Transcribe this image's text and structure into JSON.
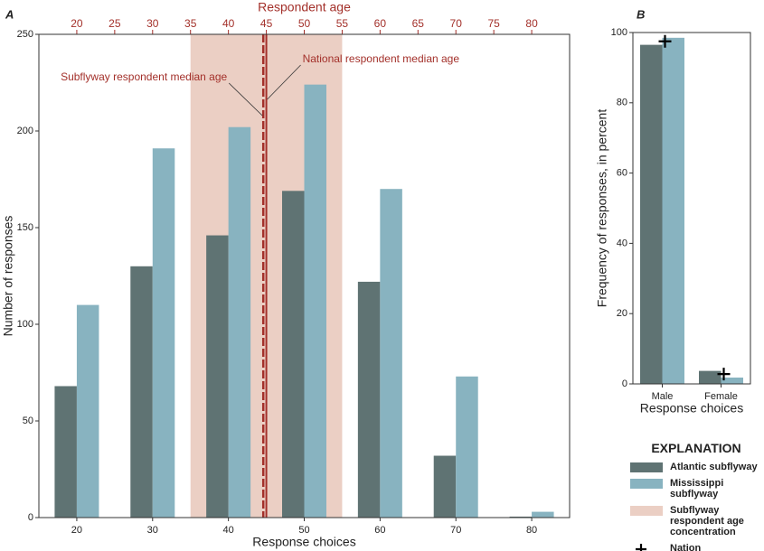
{
  "legend_title": "EXPLANATION",
  "chart_data": [
    {
      "type": "bar",
      "panel": "A",
      "xlabel": "Response choices",
      "ylabel": "Number of responses",
      "categories": [
        "20",
        "30",
        "40",
        "50",
        "60",
        "70",
        "80"
      ],
      "series": [
        {
          "name": "Atlantic subflyway",
          "color": "#5f7373",
          "values": [
            68,
            130,
            146,
            169,
            122,
            32,
            0.5
          ]
        },
        {
          "name": "Mississippi subflyway",
          "color": "#88b3c0",
          "values": [
            110,
            191,
            202,
            224,
            170,
            73,
            3
          ]
        }
      ],
      "ylim": [
        0,
        250
      ],
      "yticks": [
        0,
        50,
        100,
        150,
        200,
        250
      ],
      "x2label": "Respondent age",
      "x2lim": [
        15,
        85
      ],
      "x2ticks": [
        20,
        25,
        30,
        35,
        40,
        45,
        50,
        55,
        60,
        65,
        70,
        75,
        80
      ],
      "x2color": "#a3302a",
      "shaded_region": {
        "name": "Subflyway respondent age concentration",
        "range": [
          35,
          55
        ],
        "color": "#ebcfc4"
      },
      "annotations": [
        {
          "text": "Subflyway respondent median age",
          "x": 44.6,
          "style": "dashed"
        },
        {
          "text": "National respondent median age",
          "x": 45,
          "style": "solid"
        }
      ]
    },
    {
      "type": "bar",
      "panel": "B",
      "xlabel": "Response choices",
      "ylabel": "Frequency of responses, in percent",
      "categories": [
        "Male",
        "Female"
      ],
      "series": [
        {
          "color": "#5f7373",
          "values": [
            96.5,
            3.7
          ]
        },
        {
          "color": "#88b3c0",
          "values": [
            98.5,
            1.8
          ]
        }
      ],
      "markers": {
        "name": "Nation",
        "symbol": "+",
        "color": "#000000",
        "values": [
          97.5,
          2.8
        ]
      },
      "ylim": [
        0,
        100
      ],
      "yticks": [
        0,
        20,
        40,
        60,
        80,
        100
      ]
    }
  ]
}
